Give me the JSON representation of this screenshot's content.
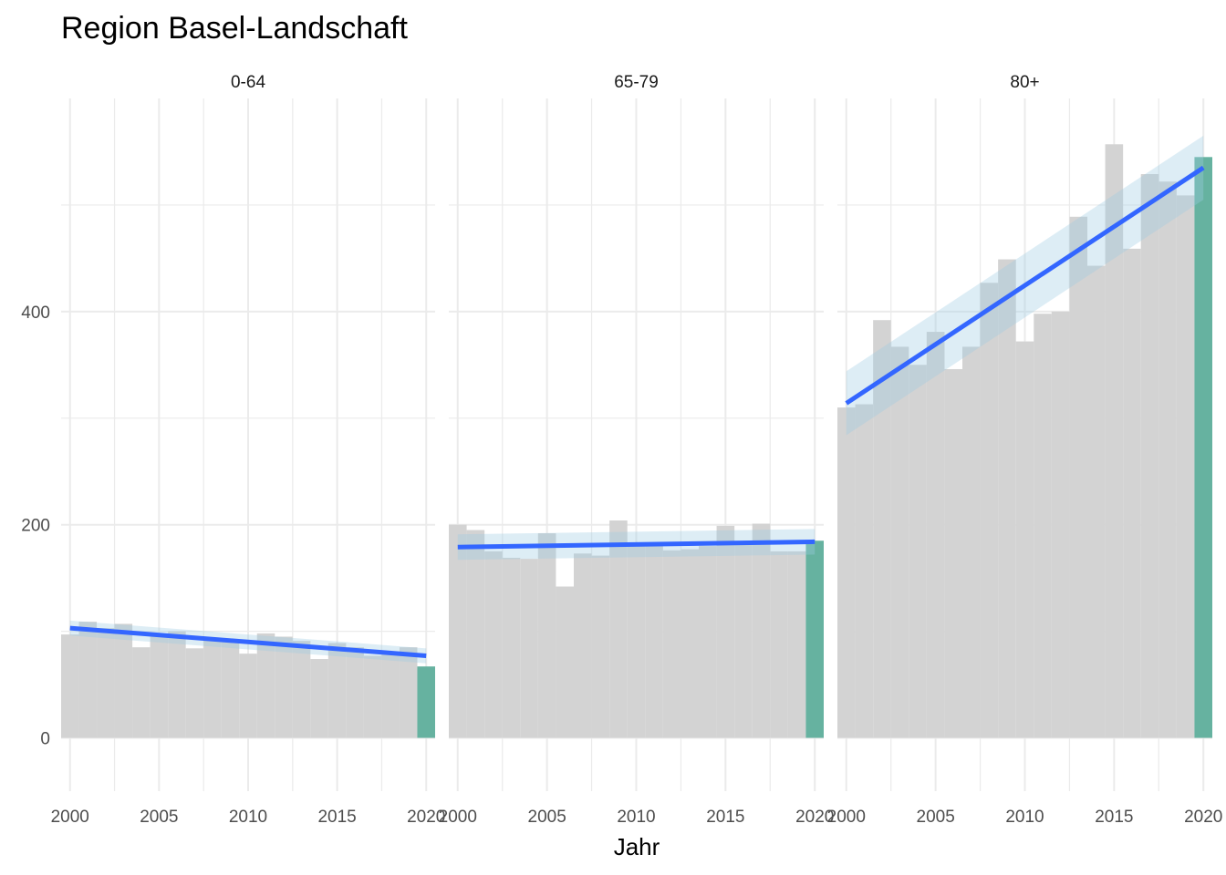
{
  "chart_data": {
    "type": "bar",
    "title": "Region Basel-Landschaft",
    "xlabel": "Jahr",
    "ylabel": "",
    "ylim": [
      -50,
      600
    ],
    "y_ticks": [
      0,
      200,
      400
    ],
    "x_ticks": [
      2000,
      2005,
      2010,
      2015,
      2020
    ],
    "xlim": [
      1999.5,
      2020.5
    ],
    "grid": true,
    "colors": {
      "bar": "#d3d3d3",
      "highlight_bar": "#66b2a0",
      "trend_line": "#3366ff",
      "ribbon": "#9ecae1",
      "grid": "#ebebeb"
    },
    "panels": [
      {
        "label": "0-64",
        "years": [
          2000,
          2001,
          2002,
          2003,
          2004,
          2005,
          2006,
          2007,
          2008,
          2009,
          2010,
          2011,
          2012,
          2013,
          2014,
          2015,
          2016,
          2017,
          2018,
          2019,
          2020
        ],
        "values": [
          97,
          109,
          103,
          107,
          85,
          95,
          100,
          84,
          93,
          92,
          79,
          98,
          95,
          91,
          74,
          89,
          85,
          77,
          80,
          85,
          67
        ],
        "highlight_year": 2020,
        "trend": {
          "start": [
            2000,
            103
          ],
          "end": [
            2020,
            77
          ],
          "se_start": 7,
          "se_end": 7
        }
      },
      {
        "label": "65-79",
        "years": [
          2000,
          2001,
          2002,
          2003,
          2004,
          2005,
          2006,
          2007,
          2008,
          2009,
          2010,
          2011,
          2012,
          2013,
          2014,
          2015,
          2016,
          2017,
          2018,
          2019,
          2020
        ],
        "values": [
          200,
          195,
          175,
          169,
          168,
          192,
          142,
          173,
          171,
          204,
          180,
          182,
          176,
          177,
          180,
          199,
          183,
          201,
          175,
          175,
          185
        ],
        "highlight_year": 2020,
        "trend": {
          "start": [
            2000,
            179
          ],
          "end": [
            2020,
            184
          ],
          "se_start": 12,
          "se_end": 12
        }
      },
      {
        "label": "80+",
        "years": [
          2000,
          2001,
          2002,
          2003,
          2004,
          2005,
          2006,
          2007,
          2008,
          2009,
          2010,
          2011,
          2012,
          2013,
          2014,
          2015,
          2016,
          2017,
          2018,
          2019,
          2020
        ],
        "values": [
          310,
          313,
          392,
          367,
          350,
          381,
          346,
          367,
          427,
          449,
          372,
          398,
          400,
          489,
          443,
          557,
          459,
          529,
          522,
          509,
          545
        ],
        "highlight_year": 2020,
        "trend": {
          "start": [
            2000,
            314
          ],
          "end": [
            2020,
            535
          ],
          "se_start": 30,
          "se_end": 30
        }
      }
    ]
  }
}
